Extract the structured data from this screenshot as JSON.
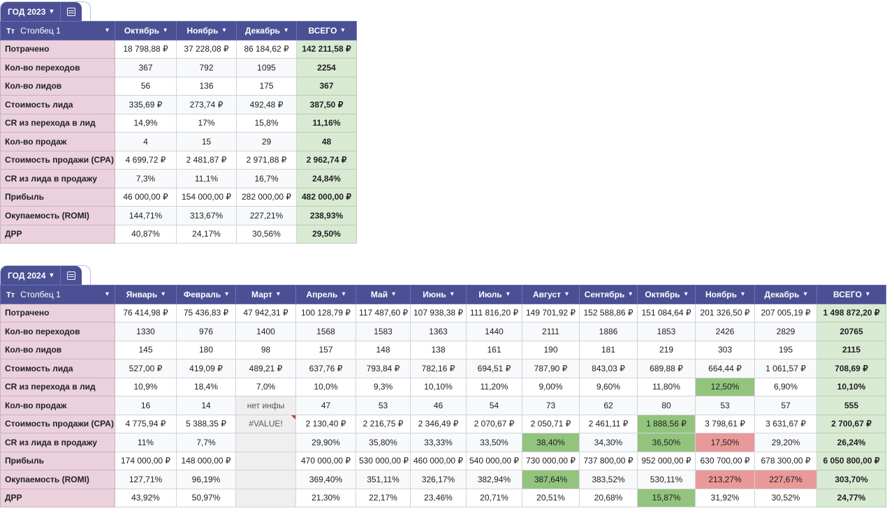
{
  "t2023": {
    "tab": "ГОД 2023",
    "colname_prefix": "Тт",
    "colname": "Столбец 1",
    "months": [
      "Октябрь",
      "Ноябрь",
      "Декабрь"
    ],
    "total_label": "ВСЕГО",
    "rows": [
      {
        "label": "Потрачено",
        "cells": [
          "18 798,88 ₽",
          "37 228,08 ₽",
          "86 184,62 ₽"
        ],
        "total": "142 211,58 ₽"
      },
      {
        "label": "Кол-во переходов",
        "cells": [
          "367",
          "792",
          "1095"
        ],
        "total": "2254"
      },
      {
        "label": "Кол-во лидов",
        "cells": [
          "56",
          "136",
          "175"
        ],
        "total": "367"
      },
      {
        "label": "Стоимость лида",
        "cells": [
          "335,69 ₽",
          "273,74 ₽",
          "492,48 ₽"
        ],
        "total": "387,50 ₽"
      },
      {
        "label": "CR из перехода в лид",
        "cells": [
          "14,9%",
          "17%",
          "15,8%"
        ],
        "total": "11,16%"
      },
      {
        "label": "Кол-во продаж",
        "cells": [
          "4",
          "15",
          "29"
        ],
        "total": "48"
      },
      {
        "label": "Стоимость продажи (CPA)",
        "cells": [
          "4 699,72 ₽",
          "2 481,87 ₽",
          "2 971,88 ₽"
        ],
        "total": "2 962,74 ₽"
      },
      {
        "label": "CR из лида в продажу",
        "cells": [
          "7,3%",
          "11,1%",
          "16,7%"
        ],
        "total": "24,84%"
      },
      {
        "label": "Прибыль",
        "cells": [
          "46 000,00 ₽",
          "154 000,00 ₽",
          "282 000,00 ₽"
        ],
        "total": "482 000,00 ₽"
      },
      {
        "label": "Окупаемость (ROMI)",
        "cells": [
          "144,71%",
          "313,67%",
          "227,21%"
        ],
        "total": "238,93%"
      },
      {
        "label": "ДРР",
        "cells": [
          "40,87%",
          "24,17%",
          "30,56%"
        ],
        "total": "29,50%"
      }
    ]
  },
  "t2024": {
    "tab": "ГОД 2024",
    "colname_prefix": "Тт",
    "colname": "Столбец 1",
    "months": [
      "Январь",
      "Февраль",
      "Март",
      "Апрель",
      "Май",
      "Июнь",
      "Июль",
      "Август",
      "Сентябрь",
      "Октябрь",
      "Ноябрь",
      "Декабрь"
    ],
    "total_label": "ВСЕГО",
    "rows": [
      {
        "label": "Потрачено",
        "cells": [
          "76 414,98 ₽",
          "75 436,83 ₽",
          "47 942,31 ₽",
          "100 128,79 ₽",
          "117 487,60 ₽",
          "107 938,38 ₽",
          "111 816,20 ₽",
          "149 701,92 ₽",
          "152 588,86 ₽",
          "151 084,64 ₽",
          "201 326,50 ₽",
          "207 005,19 ₽"
        ],
        "total": "1 498 872,20 ₽"
      },
      {
        "label": "Кол-во переходов",
        "cells": [
          "1330",
          "976",
          "1400",
          "1568",
          "1583",
          "1363",
          "1440",
          "2111",
          "1886",
          "1853",
          "2426",
          "2829"
        ],
        "total": "20765"
      },
      {
        "label": "Кол-во лидов",
        "cells": [
          "145",
          "180",
          "98",
          "157",
          "148",
          "138",
          "161",
          "190",
          "181",
          "219",
          "303",
          "195"
        ],
        "total": "2115"
      },
      {
        "label": "Стоимость лида",
        "cells": [
          "527,00 ₽",
          "419,09 ₽",
          "489,21 ₽",
          "637,76 ₽",
          "793,84 ₽",
          "782,16 ₽",
          "694,51 ₽",
          "787,90 ₽",
          "843,03 ₽",
          "689,88 ₽",
          "664,44 ₽",
          "1 061,57 ₽"
        ],
        "total": "708,69 ₽"
      },
      {
        "label": "CR из перехода в лид",
        "cells": [
          "10,9%",
          "18,4%",
          "7,0%",
          "10,0%",
          "9,3%",
          "10,10%",
          "11,20%",
          "9,00%",
          "9,60%",
          "11,80%",
          "12,50%",
          "6,90%"
        ],
        "total": "10,10%"
      },
      {
        "label": "Кол-во продаж",
        "cells": [
          "16",
          "14",
          "нет инфы",
          "47",
          "53",
          "46",
          "54",
          "73",
          "62",
          "80",
          "53",
          "57"
        ],
        "total": "555"
      },
      {
        "label": "Стоимость продажи (CPA)",
        "cells": [
          "4 775,94 ₽",
          "5 388,35 ₽",
          "#VALUE!",
          "2 130,40 ₽",
          "2 216,75 ₽",
          "2 346,49 ₽",
          "2 070,67 ₽",
          "2 050,71 ₽",
          "2 461,11 ₽",
          "1 888,56 ₽",
          "3 798,61 ₽",
          "3 631,67 ₽"
        ],
        "total": "2 700,67 ₽"
      },
      {
        "label": "CR из лида в продажу",
        "cells": [
          "11%",
          "7,7%",
          "",
          "29,90%",
          "35,80%",
          "33,33%",
          "33,50%",
          "38,40%",
          "34,30%",
          "36,50%",
          "17,50%",
          "29,20%"
        ],
        "total": "26,24%"
      },
      {
        "label": "Прибыль",
        "cells": [
          "174 000,00 ₽",
          "148 000,00 ₽",
          "",
          "470 000,00 ₽",
          "530 000,00 ₽",
          "460 000,00 ₽",
          "540 000,00 ₽",
          "730 000,00 ₽",
          "737 800,00 ₽",
          "952 000,00 ₽",
          "630 700,00 ₽",
          "678 300,00 ₽"
        ],
        "total": "6 050 800,00 ₽"
      },
      {
        "label": "Окупаемость (ROMI)",
        "cells": [
          "127,71%",
          "96,19%",
          "",
          "369,40%",
          "351,11%",
          "326,17%",
          "382,94%",
          "387,64%",
          "383,52%",
          "530,11%",
          "213,27%",
          "227,67%"
        ],
        "total": "303,70%"
      },
      {
        "label": "ДРР",
        "cells": [
          "43,92%",
          "50,97%",
          "",
          "21,30%",
          "22,17%",
          "23,46%",
          "20,71%",
          "20,51%",
          "20,68%",
          "15,87%",
          "31,92%",
          "30,52%"
        ],
        "total": "24,77%"
      }
    ],
    "highlights": {
      "green_hex": "#93c47d",
      "red_hex": "#ea9999",
      "gray_hex": "#efefef"
    }
  }
}
